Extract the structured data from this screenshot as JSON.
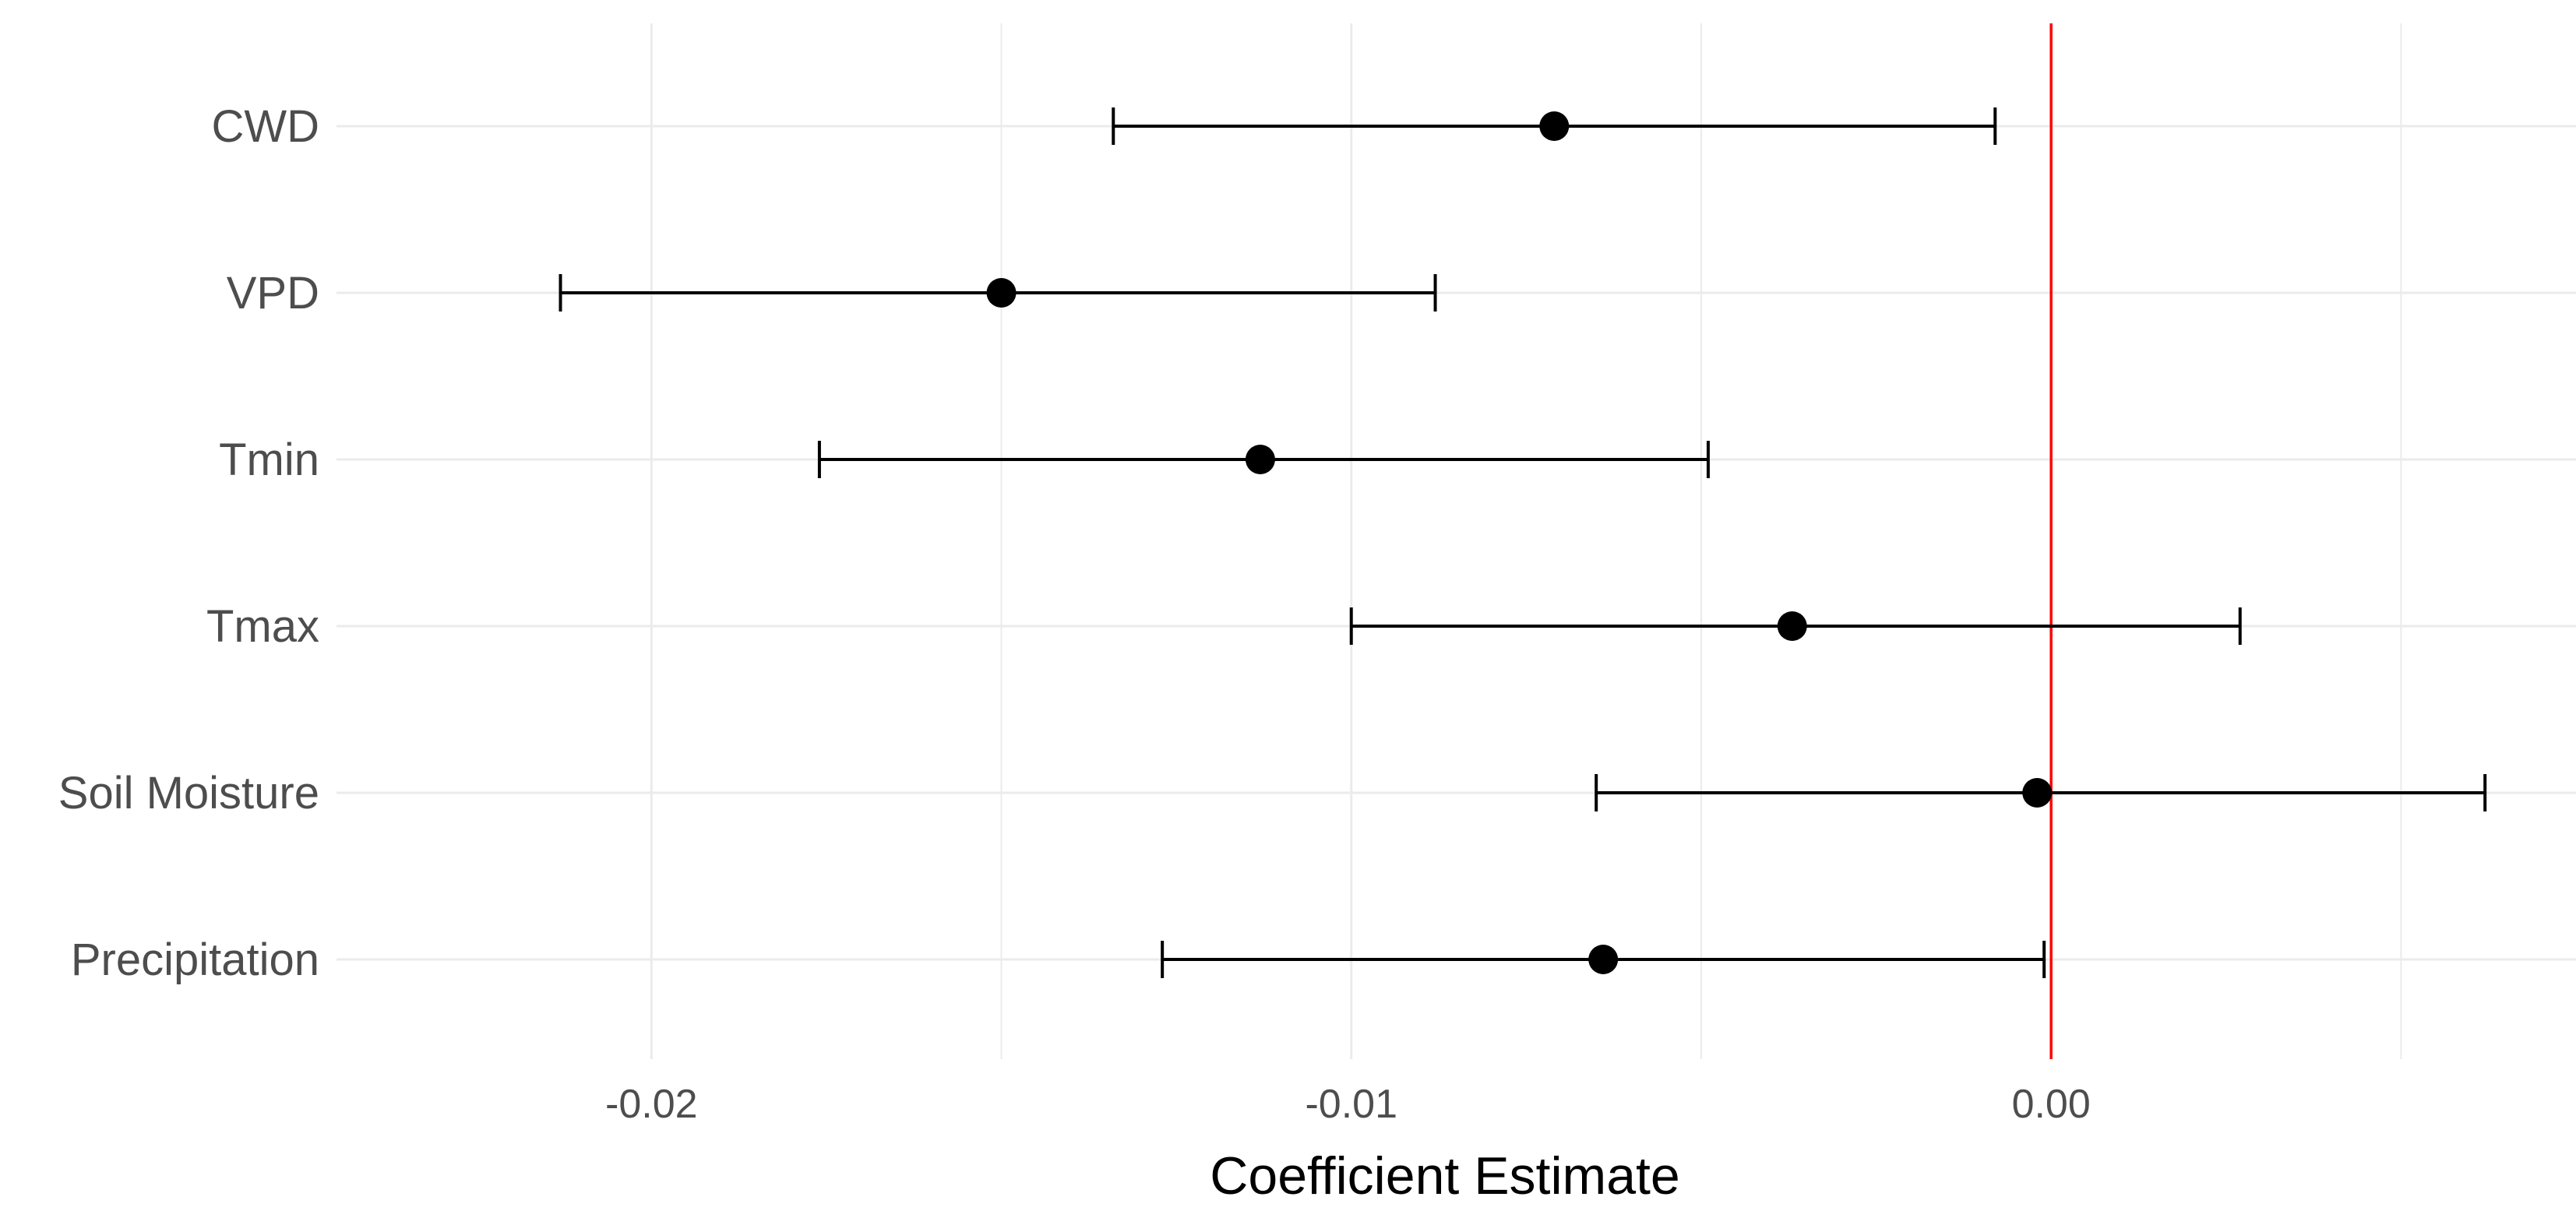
{
  "chart_data": {
    "type": "scatter",
    "subtype": "coefficient-plot-with-error-bars",
    "title": "",
    "xlabel": "Coefficient Estimate",
    "ylabel": "",
    "xlim": [
      -0.0245,
      0.0075
    ],
    "x_ticks": [
      {
        "value": -0.02,
        "label": "-0.02"
      },
      {
        "value": -0.01,
        "label": "-0.01"
      },
      {
        "value": 0.0,
        "label": "0.00"
      }
    ],
    "x_minor_gridlines": [
      -0.025,
      -0.015,
      -0.005,
      0.005
    ],
    "reference_line": {
      "x": 0.0,
      "color": "#ff0000"
    },
    "grid": true,
    "legend": "none",
    "points": [
      {
        "label": "CWD",
        "estimate": -0.0071,
        "lower": -0.0134,
        "upper": -0.0008
      },
      {
        "label": "VPD",
        "estimate": -0.015,
        "lower": -0.0213,
        "upper": -0.0088
      },
      {
        "label": "Tmin",
        "estimate": -0.0113,
        "lower": -0.0176,
        "upper": -0.0049
      },
      {
        "label": "Tmax",
        "estimate": -0.0037,
        "lower": -0.01,
        "upper": 0.0027
      },
      {
        "label": "Soil Moisture",
        "estimate": -0.0002,
        "lower": -0.0065,
        "upper": 0.0062
      },
      {
        "label": "Precipitation",
        "estimate": -0.0064,
        "lower": -0.0127,
        "upper": -0.0001
      }
    ],
    "colors": {
      "point": "#000000",
      "errorbar": "#000000",
      "grid": "#ebebeb",
      "reference": "#ff0000"
    }
  }
}
